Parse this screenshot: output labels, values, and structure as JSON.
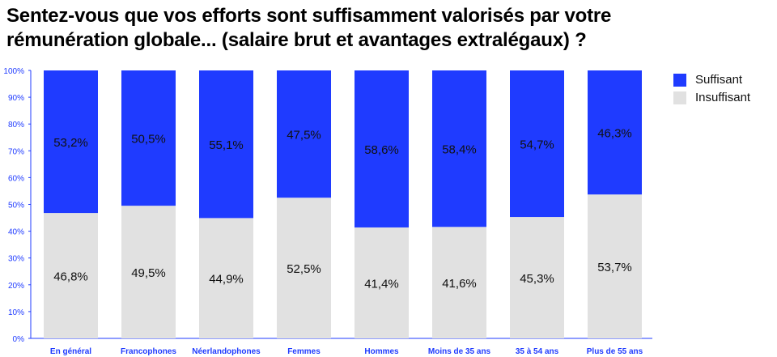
{
  "title": "Sentez-vous que vos efforts sont suffisamment valorisés par votre rémunération globale... (salaire brut et avantages extralégaux) ?",
  "colors": {
    "suffisant": "#1f3bff",
    "insuffisant": "#e1e1e1",
    "axis": "#1f3bff"
  },
  "legend": {
    "suffisant": "Suffisant",
    "insuffisant": "Insuffisant"
  },
  "chart_data": {
    "type": "bar",
    "stacked": true,
    "title": "Sentez-vous que vos efforts sont suffisamment valorisés par votre rémunération globale... (salaire brut et avantages extralégaux) ?",
    "categories": [
      "En général",
      "Francophones",
      "Néerlandophones",
      "Femmes",
      "Hommes",
      "Moins de 35 ans",
      "35 à 54 ans",
      "Plus de 55 ans"
    ],
    "series": [
      {
        "name": "Insuffisant",
        "values": [
          46.8,
          49.5,
          44.9,
          52.5,
          41.4,
          41.6,
          45.3,
          53.7
        ],
        "labels": [
          "46,8%",
          "49,5%",
          "44,9%",
          "52,5%",
          "41,4%",
          "41,6%",
          "45,3%",
          "53,7%"
        ]
      },
      {
        "name": "Suffisant",
        "values": [
          53.2,
          50.5,
          55.1,
          47.5,
          58.6,
          58.4,
          54.7,
          46.3
        ],
        "labels": [
          "53,2%",
          "50,5%",
          "55,1%",
          "47,5%",
          "58,6%",
          "58,4%",
          "54,7%",
          "46,3%"
        ]
      }
    ],
    "yticks": [
      "0%",
      "10%",
      "20%",
      "30%",
      "40%",
      "50%",
      "60%",
      "70%",
      "80%",
      "90%",
      "100%"
    ],
    "ylim": [
      0,
      100
    ],
    "xlabel": "",
    "ylabel": "",
    "legend_position": "top-right"
  }
}
